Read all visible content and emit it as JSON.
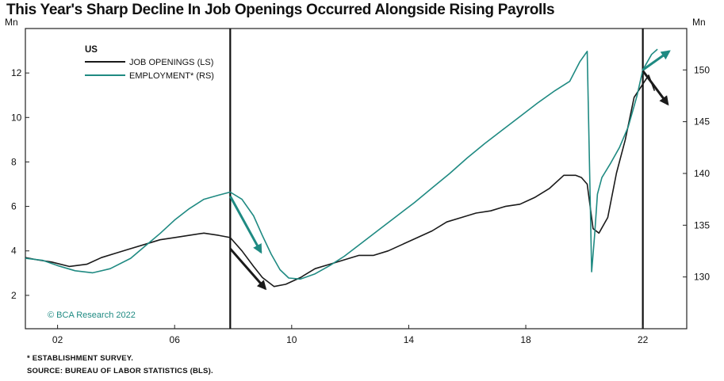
{
  "title": "This Year's Sharp Decline In Job Openings Occurred Alongside Rising Payrolls",
  "footnote": "* ESTABLISHMENT SURVEY.",
  "source": "SOURCE: BUREAU OF LABOR STATISTICS (BLS).",
  "watermark": "© BCA Research 2022",
  "colors": {
    "job_openings": "#1a1a1a",
    "employment": "#1f8a82",
    "background": "#ffffff"
  },
  "chart_data": {
    "type": "line",
    "region": "US",
    "y_left_unit": "Mn",
    "y_right_unit": "Mn",
    "y_left_lim": [
      0.5,
      14.0
    ],
    "y_right_lim": [
      125,
      154
    ],
    "y_left_ticks": [
      2,
      4,
      6,
      8,
      10,
      12
    ],
    "y_right_ticks": [
      130,
      135,
      140,
      145,
      150
    ],
    "x_lim": [
      2000.9,
      2023.5
    ],
    "x_ticks": [
      {
        "x": 2002,
        "label": "02"
      },
      {
        "x": 2006,
        "label": "06"
      },
      {
        "x": 2010,
        "label": "10"
      },
      {
        "x": 2014,
        "label": "14"
      },
      {
        "x": 2018,
        "label": "18"
      },
      {
        "x": 2022,
        "label": "22"
      }
    ],
    "vertical_lines": [
      2007.9,
      2022.0
    ],
    "legend_position": "top-left",
    "series": [
      {
        "name": "JOB OPENINGS (LS)",
        "axis": "left",
        "x": [
          2000.9,
          2001.3,
          2001.8,
          2002.4,
          2003.0,
          2003.5,
          2004.0,
          2004.5,
          2005.0,
          2005.5,
          2006.0,
          2006.5,
          2007.0,
          2007.5,
          2007.9,
          2008.3,
          2008.7,
          2009.0,
          2009.4,
          2009.8,
          2010.3,
          2010.8,
          2011.3,
          2011.8,
          2012.3,
          2012.8,
          2013.3,
          2013.8,
          2014.3,
          2014.8,
          2015.3,
          2015.8,
          2016.3,
          2016.8,
          2017.3,
          2017.8,
          2018.3,
          2018.8,
          2019.3,
          2019.7,
          2019.9,
          2020.1,
          2020.3,
          2020.5,
          2020.8,
          2021.1,
          2021.4,
          2021.7,
          2022.0,
          2022.2,
          2022.4
        ],
        "y": [
          3.7,
          3.6,
          3.5,
          3.3,
          3.4,
          3.7,
          3.9,
          4.1,
          4.3,
          4.5,
          4.6,
          4.7,
          4.8,
          4.7,
          4.6,
          4.0,
          3.3,
          2.8,
          2.4,
          2.5,
          2.8,
          3.2,
          3.4,
          3.6,
          3.8,
          3.8,
          4.0,
          4.3,
          4.6,
          4.9,
          5.3,
          5.5,
          5.7,
          5.8,
          6.0,
          6.1,
          6.4,
          6.8,
          7.4,
          7.4,
          7.3,
          7.0,
          5.0,
          4.8,
          5.5,
          7.5,
          9.0,
          10.9,
          11.5,
          11.9,
          11.2
        ]
      },
      {
        "name": "EMPLOYMENT* (RS)",
        "axis": "right",
        "x": [
          2000.9,
          2001.5,
          2002.0,
          2002.6,
          2003.2,
          2003.8,
          2004.5,
          2005.0,
          2005.5,
          2006.0,
          2006.5,
          2007.0,
          2007.5,
          2007.9,
          2008.3,
          2008.7,
          2009.0,
          2009.3,
          2009.6,
          2009.9,
          2010.3,
          2010.8,
          2011.3,
          2011.8,
          2012.4,
          2013.0,
          2013.6,
          2014.2,
          2014.8,
          2015.4,
          2016.0,
          2016.6,
          2017.2,
          2017.8,
          2018.4,
          2019.0,
          2019.5,
          2019.85,
          2020.1,
          2020.25,
          2020.35,
          2020.45,
          2020.6,
          2020.9,
          2021.2,
          2021.5,
          2021.8,
          2022.0,
          2022.3,
          2022.5
        ],
        "y": [
          131.8,
          131.6,
          131.1,
          130.6,
          130.4,
          130.8,
          131.8,
          133.0,
          134.2,
          135.5,
          136.6,
          137.5,
          137.9,
          138.2,
          137.5,
          135.9,
          134.0,
          132.2,
          130.7,
          129.9,
          129.8,
          130.3,
          131.1,
          132.0,
          133.3,
          134.6,
          135.9,
          137.2,
          138.6,
          140.0,
          141.5,
          142.9,
          144.2,
          145.5,
          146.8,
          148.0,
          148.9,
          150.8,
          151.8,
          130.5,
          134.0,
          138.0,
          139.6,
          141.0,
          142.5,
          144.5,
          147.5,
          150.0,
          151.5,
          152.0
        ]
      }
    ],
    "arrows": [
      {
        "series": "EMPLOYMENT* (RS)",
        "axis": "right",
        "from": [
          2007.9,
          137.8
        ],
        "to": [
          2008.95,
          132.4
        ]
      },
      {
        "series": "JOB OPENINGS (LS)",
        "axis": "left",
        "from": [
          2007.9,
          4.1
        ],
        "to": [
          2009.1,
          2.3
        ]
      },
      {
        "series": "EMPLOYMENT* (RS)",
        "axis": "right",
        "from": [
          2022.0,
          150.0
        ],
        "to": [
          2022.9,
          151.8
        ]
      },
      {
        "series": "JOB OPENINGS (LS)",
        "axis": "left",
        "from": [
          2022.0,
          12.1
        ],
        "to": [
          2022.85,
          10.6
        ]
      }
    ]
  }
}
